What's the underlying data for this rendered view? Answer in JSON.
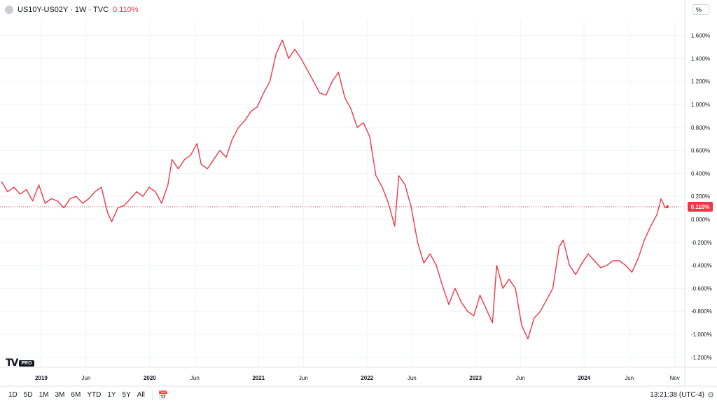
{
  "header": {
    "title": "US10Y-US02Y · 1W · TVC",
    "last_value": "0.110%",
    "scale_unit": "%"
  },
  "footer": {
    "ranges": [
      "1D",
      "5D",
      "1M",
      "3M",
      "6M",
      "YTD",
      "1Y",
      "5Y",
      "All"
    ],
    "clock": "13:21:38 (UTC-4)"
  },
  "logo": {
    "text": "TV",
    "badge": "PRO"
  },
  "icons": {
    "calendar": "calendar-icon",
    "settings": "gear-icon"
  },
  "colors": {
    "line": "#f23645",
    "grid": "#f0f3fa",
    "label_bg": "#f23645"
  },
  "chart_data": {
    "type": "line",
    "ylim": [
      -1.2,
      1.6
    ],
    "yticks": [
      1.6,
      1.4,
      1.2,
      1.0,
      0.8,
      0.6,
      0.4,
      0.2,
      0.0,
      -0.2,
      -0.4,
      -0.6,
      -0.8,
      -1.0,
      -1.2
    ],
    "ytick_labels": [
      "1.600%",
      "1.400%",
      "1.200%",
      "1.000%",
      "0.800%",
      "0.600%",
      "0.400%",
      "0.200%",
      "0.000%",
      "-0.200%",
      "-0.400%",
      "-0.600%",
      "-0.800%",
      "-1.000%",
      "-1.200%"
    ],
    "xtick_labels": [
      "2019",
      "Jun",
      "2020",
      "Jun",
      "2021",
      "Jun",
      "2022",
      "Jun",
      "2023",
      "Jun",
      "2024",
      "Jun",
      "Nov"
    ],
    "xtick_dates": [
      "2019-01-01",
      "2019-06-01",
      "2020-01-01",
      "2020-06-01",
      "2021-01-01",
      "2021-06-01",
      "2022-01-01",
      "2022-06-01",
      "2023-01-01",
      "2023-06-01",
      "2024-01-01",
      "2024-06-01",
      "2024-11-01"
    ],
    "last_value": 0.11,
    "last_value_label": "0.110%",
    "grid": true,
    "series": [
      {
        "x": [
          "2018-08-20",
          "2018-09-10",
          "2018-10-01",
          "2018-10-22",
          "2018-11-12",
          "2018-12-03",
          "2018-12-24",
          "2019-01-14",
          "2019-02-04",
          "2019-02-25",
          "2019-03-18",
          "2019-04-08",
          "2019-04-29",
          "2019-05-20",
          "2019-06-10",
          "2019-07-01",
          "2019-07-22",
          "2019-08-12",
          "2019-08-26",
          "2019-09-16",
          "2019-10-07",
          "2019-10-28",
          "2019-11-18",
          "2019-12-09",
          "2019-12-30",
          "2020-01-20",
          "2020-02-10",
          "2020-03-02",
          "2020-03-16",
          "2020-04-06",
          "2020-04-27",
          "2020-05-18",
          "2020-06-08",
          "2020-06-22",
          "2020-07-13",
          "2020-08-03",
          "2020-08-24",
          "2020-09-14",
          "2020-10-05",
          "2020-10-26",
          "2020-11-16",
          "2020-12-07",
          "2020-12-28",
          "2021-01-18",
          "2021-02-08",
          "2021-03-01",
          "2021-03-22",
          "2021-04-12",
          "2021-05-03",
          "2021-05-24",
          "2021-06-14",
          "2021-07-05",
          "2021-07-26",
          "2021-08-16",
          "2021-09-06",
          "2021-09-27",
          "2021-10-18",
          "2021-11-08",
          "2021-11-29",
          "2021-12-20",
          "2022-01-10",
          "2022-01-31",
          "2022-02-21",
          "2022-03-14",
          "2022-04-04",
          "2022-04-18",
          "2022-05-09",
          "2022-05-30",
          "2022-06-20",
          "2022-07-11",
          "2022-08-01",
          "2022-08-22",
          "2022-09-12",
          "2022-10-03",
          "2022-10-24",
          "2022-11-14",
          "2022-12-05",
          "2022-12-26",
          "2023-01-16",
          "2023-02-06",
          "2023-02-27",
          "2023-03-13",
          "2023-04-03",
          "2023-04-24",
          "2023-05-15",
          "2023-06-05",
          "2023-06-26",
          "2023-07-17",
          "2023-08-07",
          "2023-08-28",
          "2023-09-18",
          "2023-10-09",
          "2023-10-23",
          "2023-11-13",
          "2023-12-04",
          "2023-12-25",
          "2024-01-15",
          "2024-02-05",
          "2024-02-26",
          "2024-03-18",
          "2024-04-08",
          "2024-04-29",
          "2024-05-20",
          "2024-06-10",
          "2024-07-01",
          "2024-07-22",
          "2024-08-12",
          "2024-09-02",
          "2024-09-16",
          "2024-09-30",
          "2024-10-07"
        ],
        "y": [
          0.33,
          0.24,
          0.28,
          0.22,
          0.26,
          0.16,
          0.3,
          0.14,
          0.18,
          0.16,
          0.1,
          0.18,
          0.2,
          0.14,
          0.18,
          0.24,
          0.28,
          0.06,
          -0.02,
          0.1,
          0.12,
          0.18,
          0.24,
          0.2,
          0.28,
          0.24,
          0.14,
          0.3,
          0.52,
          0.44,
          0.52,
          0.56,
          0.66,
          0.48,
          0.44,
          0.52,
          0.6,
          0.54,
          0.7,
          0.8,
          0.86,
          0.94,
          0.98,
          1.1,
          1.2,
          1.44,
          1.56,
          1.4,
          1.48,
          1.4,
          1.3,
          1.2,
          1.1,
          1.08,
          1.2,
          1.28,
          1.06,
          0.96,
          0.8,
          0.84,
          0.72,
          0.38,
          0.28,
          0.14,
          -0.06,
          0.38,
          0.3,
          0.1,
          -0.2,
          -0.38,
          -0.3,
          -0.4,
          -0.58,
          -0.74,
          -0.6,
          -0.72,
          -0.8,
          -0.84,
          -0.66,
          -0.78,
          -0.9,
          -0.4,
          -0.6,
          -0.52,
          -0.6,
          -0.92,
          -1.04,
          -0.86,
          -0.8,
          -0.7,
          -0.6,
          -0.24,
          -0.18,
          -0.4,
          -0.48,
          -0.38,
          -0.3,
          -0.36,
          -0.42,
          -0.4,
          -0.36,
          -0.36,
          -0.4,
          -0.46,
          -0.34,
          -0.18,
          -0.06,
          0.04,
          0.18,
          0.1,
          0.11
        ]
      }
    ]
  }
}
